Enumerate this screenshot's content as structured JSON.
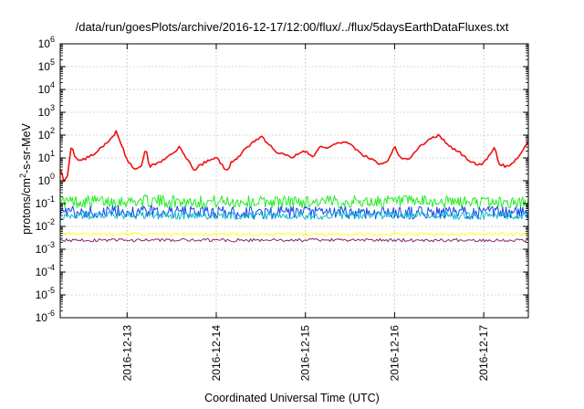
{
  "chart_data": {
    "type": "line",
    "title": "/data/run/goesPlots/archive/2016-12-17/12:00/flux/../flux/5daysEarthDataFluxes.txt",
    "xlabel": "Coordinated Universal Time (UTC)",
    "ylabel": {
      "pre": "protons/cm",
      "sup": "2",
      "post": "-s-sr-MeV"
    },
    "y_scale": "log",
    "ylim": [
      1e-06,
      1000000.0
    ],
    "xlim": [
      "2016-12-12T06:00",
      "2016-12-17T12:00"
    ],
    "grid": true,
    "legend": "none",
    "y_ticks": [
      {
        "value": 1e-06,
        "base": "10",
        "exp": "-6"
      },
      {
        "value": 1e-05,
        "base": "10",
        "exp": "-5"
      },
      {
        "value": 0.0001,
        "base": "10",
        "exp": "-4"
      },
      {
        "value": 0.001,
        "base": "10",
        "exp": "-3"
      },
      {
        "value": 0.01,
        "base": "10",
        "exp": "-2"
      },
      {
        "value": 0.1,
        "base": "10",
        "exp": "-1"
      },
      {
        "value": 1,
        "base": "10",
        "exp": "0"
      },
      {
        "value": 10.0,
        "base": "10",
        "exp": "1"
      },
      {
        "value": 100.0,
        "base": "10",
        "exp": "2"
      },
      {
        "value": 1000.0,
        "base": "10",
        "exp": "3"
      },
      {
        "value": 10000.0,
        "base": "10",
        "exp": "4"
      },
      {
        "value": 100000.0,
        "base": "10",
        "exp": "5"
      },
      {
        "value": 1000000.0,
        "base": "10",
        "exp": "6"
      }
    ],
    "x_ticks": [
      {
        "value": "2016-12-13T00:00",
        "label": "2016-12-13"
      },
      {
        "value": "2016-12-14T00:00",
        "label": "2016-12-14"
      },
      {
        "value": "2016-12-15T00:00",
        "label": "2016-12-15"
      },
      {
        "value": "2016-12-16T00:00",
        "label": "2016-12-16"
      },
      {
        "value": "2016-12-17T00:00",
        "label": "2016-12-17"
      }
    ],
    "series": [
      {
        "color": "#ee1111",
        "x": [
          "2016-12-12T06:00",
          "2016-12-12T07:00",
          "2016-12-12T08:00",
          "2016-12-12T09:00",
          "2016-12-12T10:00",
          "2016-12-12T12:00",
          "2016-12-12T14:00",
          "2016-12-12T16:00",
          "2016-12-12T18:00",
          "2016-12-12T20:00",
          "2016-12-12T21:00",
          "2016-12-12T22:00",
          "2016-12-13T00:00",
          "2016-12-13T02:00",
          "2016-12-13T04:00",
          "2016-12-13T05:00",
          "2016-12-13T06:00",
          "2016-12-13T08:00",
          "2016-12-13T10:00",
          "2016-12-13T12:00",
          "2016-12-13T14:00",
          "2016-12-13T16:00",
          "2016-12-13T18:00",
          "2016-12-13T20:00",
          "2016-12-13T22:00",
          "2016-12-14T00:00",
          "2016-12-14T02:00",
          "2016-12-14T03:00",
          "2016-12-14T04:00",
          "2016-12-14T06:00",
          "2016-12-14T08:00",
          "2016-12-14T10:00",
          "2016-12-14T12:00",
          "2016-12-14T14:00",
          "2016-12-14T16:00",
          "2016-12-14T18:00",
          "2016-12-14T20:00",
          "2016-12-14T22:00",
          "2016-12-15T00:00",
          "2016-12-15T02:00",
          "2016-12-15T04:00",
          "2016-12-15T06:00",
          "2016-12-15T08:00",
          "2016-12-15T10:00",
          "2016-12-15T12:00",
          "2016-12-15T14:00",
          "2016-12-15T16:00",
          "2016-12-15T18:00",
          "2016-12-15T20:00",
          "2016-12-15T22:00",
          "2016-12-16T00:00",
          "2016-12-16T02:00",
          "2016-12-16T04:00",
          "2016-12-16T05:00",
          "2016-12-16T06:00",
          "2016-12-16T08:00",
          "2016-12-16T10:00",
          "2016-12-16T12:00",
          "2016-12-16T14:00",
          "2016-12-16T16:00",
          "2016-12-16T18:00",
          "2016-12-16T20:00",
          "2016-12-16T22:00",
          "2016-12-17T00:00",
          "2016-12-17T02:00",
          "2016-12-17T03:00",
          "2016-12-17T04:00",
          "2016-12-17T06:00",
          "2016-12-17T08:00",
          "2016-12-17T10:00",
          "2016-12-17T12:00"
        ],
        "y": [
          3,
          1,
          1.5,
          40,
          10,
          8,
          12,
          20,
          40,
          80,
          150,
          60,
          8,
          3,
          5,
          30,
          4,
          6,
          8,
          15,
          30,
          10,
          3,
          5,
          8,
          10,
          4,
          3,
          6,
          12,
          25,
          50,
          90,
          40,
          20,
          15,
          10,
          15,
          20,
          12,
          30,
          25,
          40,
          50,
          40,
          20,
          12,
          8,
          5,
          6,
          30,
          8,
          10,
          15,
          25,
          40,
          80,
          100,
          40,
          25,
          15,
          8,
          5,
          6,
          15,
          30,
          6,
          4,
          6,
          15,
          60
        ]
      },
      {
        "color": "#22ee22",
        "x": [
          "2016-12-12T06:00",
          "2016-12-13T06:00",
          "2016-12-14T06:00",
          "2016-12-15T06:00",
          "2016-12-16T06:00",
          "2016-12-17T12:00"
        ],
        "y": [
          0.12,
          0.13,
          0.12,
          0.12,
          0.12,
          0.11
        ]
      },
      {
        "color": "#11bbcc",
        "x": [
          "2016-12-12T06:00",
          "2016-12-13T06:00",
          "2016-12-14T06:00",
          "2016-12-15T06:00",
          "2016-12-16T06:00",
          "2016-12-17T12:00"
        ],
        "y": [
          0.03,
          0.03,
          0.03,
          0.03,
          0.03,
          0.03
        ]
      },
      {
        "color": "#1144ee",
        "x": [
          "2016-12-12T06:00",
          "2016-12-13T06:00",
          "2016-12-14T06:00",
          "2016-12-15T06:00",
          "2016-12-16T06:00",
          "2016-12-17T12:00"
        ],
        "y": [
          0.04,
          0.045,
          0.04,
          0.04,
          0.04,
          0.04
        ]
      },
      {
        "color": "#ffff22",
        "x": [
          "2016-12-12T06:00",
          "2016-12-13T06:00",
          "2016-12-14T06:00",
          "2016-12-15T06:00",
          "2016-12-16T06:00",
          "2016-12-17T12:00"
        ],
        "y": [
          0.0045,
          0.0045,
          0.0045,
          0.0045,
          0.0045,
          0.0045
        ]
      },
      {
        "color": "#882266",
        "x": [
          "2016-12-12T06:00",
          "2016-12-13T06:00",
          "2016-12-14T06:00",
          "2016-12-15T06:00",
          "2016-12-16T06:00",
          "2016-12-17T12:00"
        ],
        "y": [
          0.0025,
          0.0025,
          0.0025,
          0.0025,
          0.0025,
          0.0025
        ]
      }
    ]
  }
}
